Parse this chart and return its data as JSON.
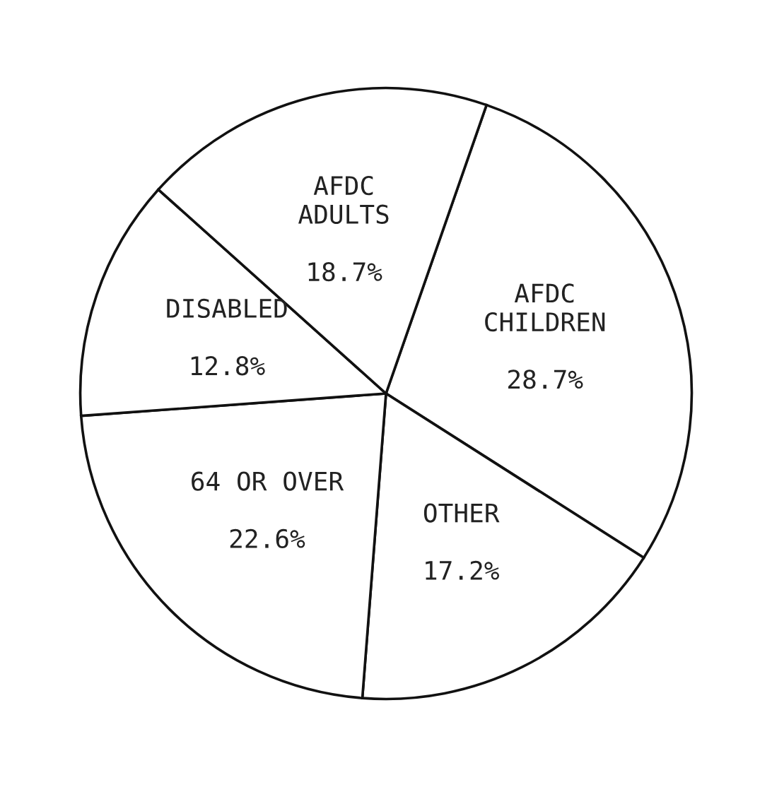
{
  "chart_data": {
    "type": "pie",
    "categories": [
      "AFDC\nCHILDREN",
      "OTHER",
      "64 OR OVER",
      "DISABLED",
      "AFDC\nADULTS"
    ],
    "values": [
      28.7,
      17.2,
      22.6,
      12.8,
      18.7
    ],
    "value_labels": [
      "28.7%",
      "17.2%",
      "22.6%",
      "12.8%",
      "18.7%"
    ],
    "colors": [
      "#ffffff",
      "#ffffff",
      "#ffffff",
      "#ffffff",
      "#ffffff"
    ]
  }
}
